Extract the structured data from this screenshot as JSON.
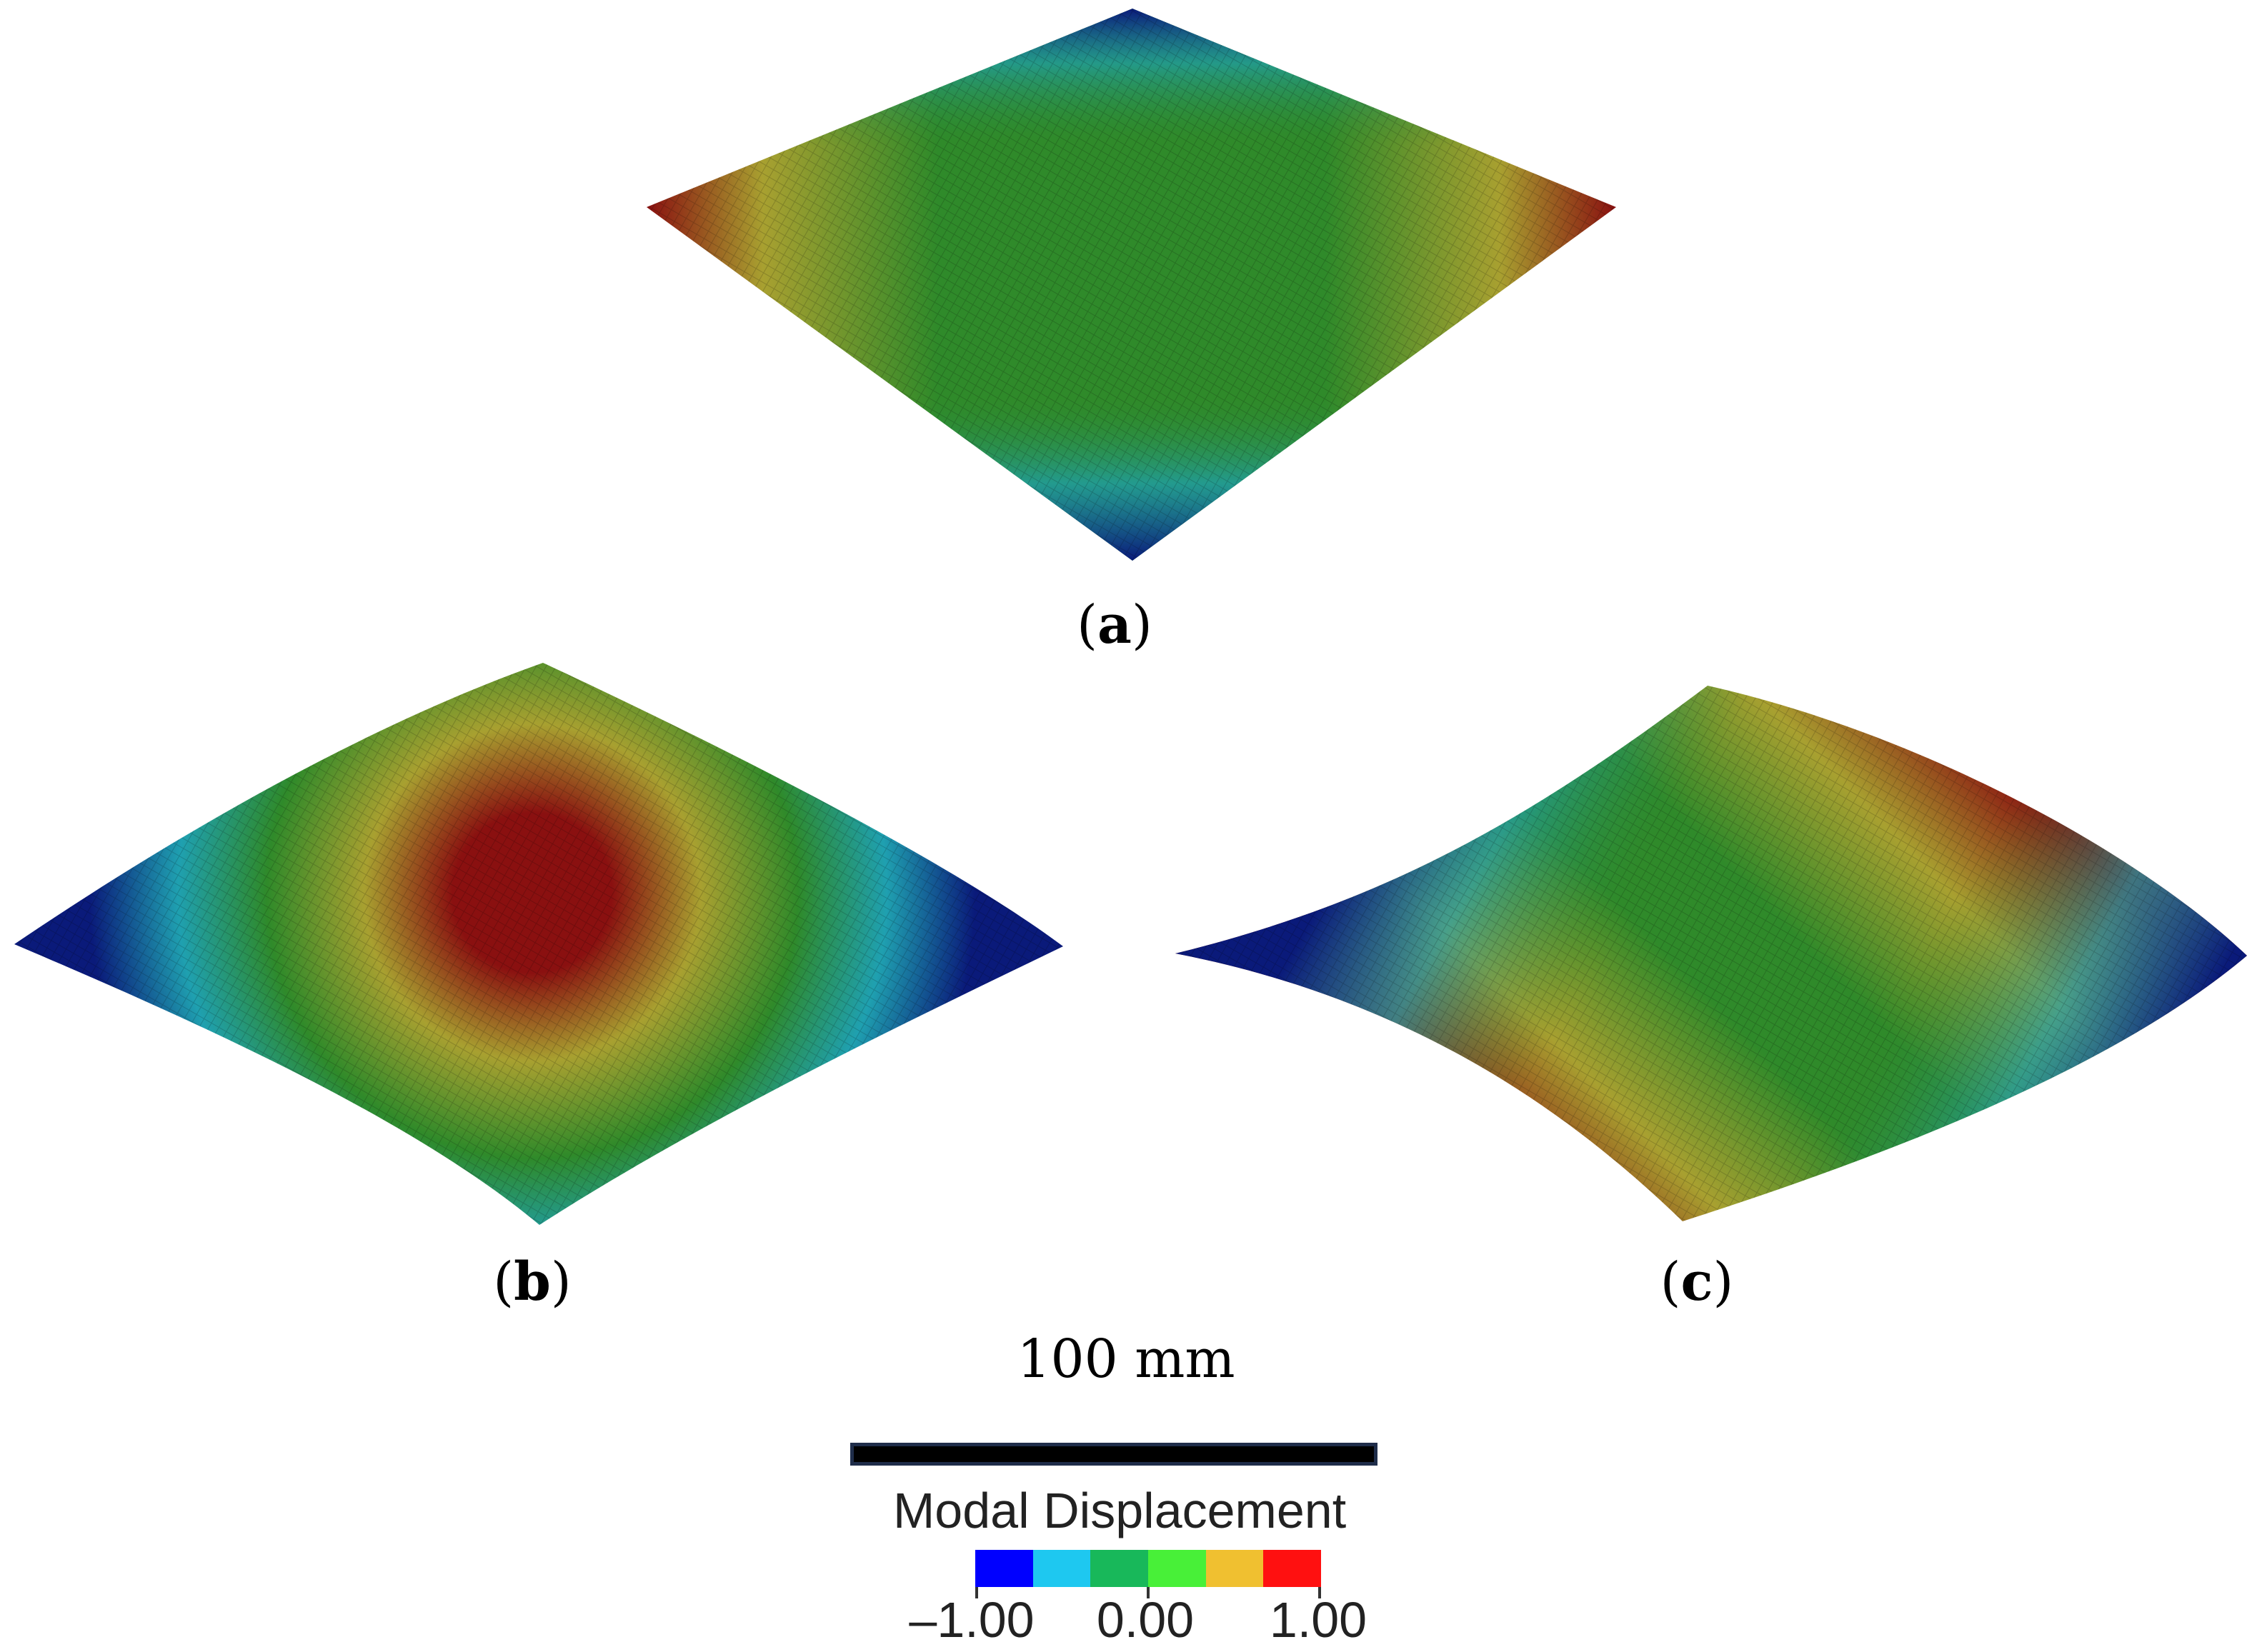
{
  "panels": [
    {
      "id": "a",
      "label": "a",
      "mode": "saddle-corners"
    },
    {
      "id": "b",
      "label": "b",
      "mode": "central-dome"
    },
    {
      "id": "c",
      "label": "c",
      "mode": "antisymmetric-diagonal"
    }
  ],
  "scale": {
    "text": "100 mm"
  },
  "legend": {
    "title": "Modal Displacement",
    "min_label": "–1.00",
    "mid_label": "0.00",
    "max_label": "1.00",
    "min": -1.0,
    "max": 1.0,
    "colors": [
      "#0000ff",
      "#1ec8f0",
      "#18b85a",
      "#48f038",
      "#f0c030",
      "#ff1010"
    ]
  },
  "surface_colors": {
    "deep_blue": "#0a1a7a",
    "cyan": "#1fa0b0",
    "green": "#2f8a2a",
    "yellow": "#a8a030",
    "red": "#8a1010"
  }
}
